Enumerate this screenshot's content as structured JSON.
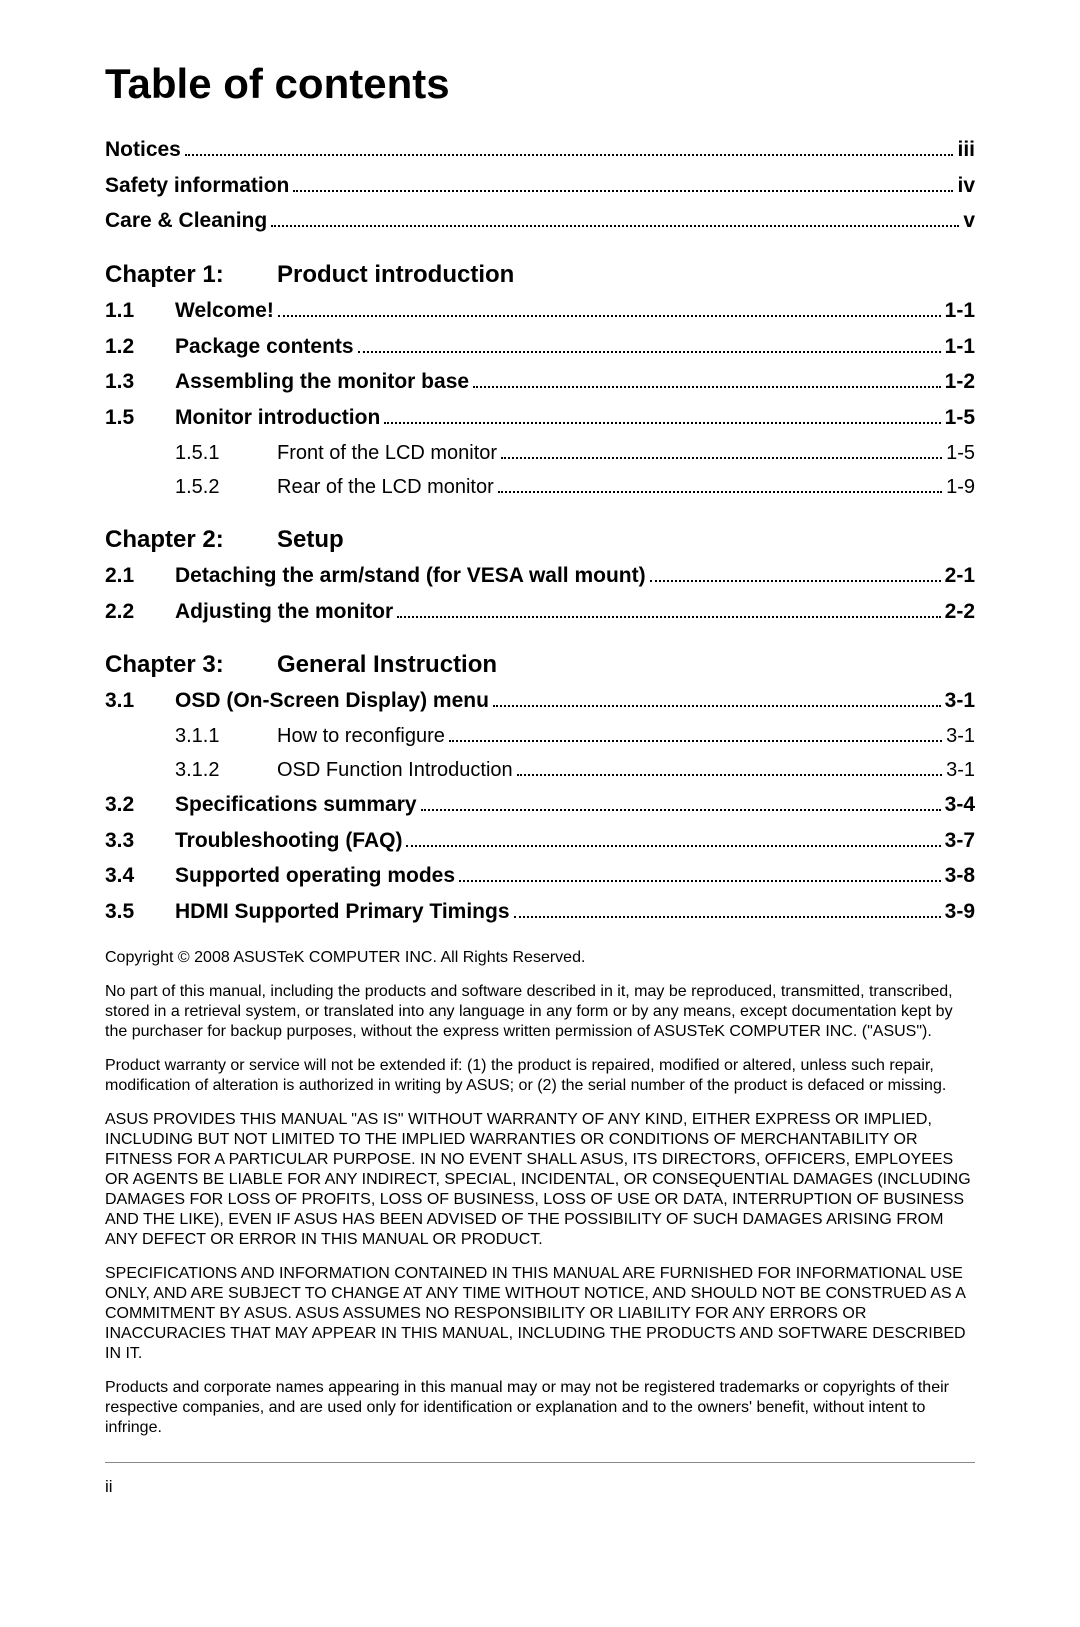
{
  "title": "Table of contents",
  "front_matter": [
    {
      "label": "Notices",
      "page": "iii"
    },
    {
      "label": "Safety information",
      "page": "iv"
    },
    {
      "label": "Care & Cleaning",
      "page": "v"
    }
  ],
  "chapters": [
    {
      "header_num": "Chapter 1:",
      "header_title": "Product introduction",
      "sections": [
        {
          "num": "1.1",
          "label": "Welcome!",
          "page": "1-1"
        },
        {
          "num": "1.2",
          "label": "Package contents",
          "page": "1-1"
        },
        {
          "num": "1.3",
          "label": "Assembling the monitor base",
          "page": "1-2"
        },
        {
          "num": "1.5",
          "label": "Monitor introduction",
          "page": "1-5",
          "subs": [
            {
              "num": "1.5.1",
              "label": "Front of the LCD monitor",
              "page": "1-5"
            },
            {
              "num": "1.5.2",
              "label": "Rear of the LCD monitor",
              "page": "1-9"
            }
          ]
        }
      ]
    },
    {
      "header_num": "Chapter 2:",
      "header_title": "Setup",
      "sections": [
        {
          "num": "2.1",
          "label": "Detaching the arm/stand (for VESA wall mount)",
          "page": "2-1"
        },
        {
          "num": "2.2",
          "label": "Adjusting the monitor",
          "page": "2-2"
        }
      ]
    },
    {
      "header_num": "Chapter 3:",
      "header_title": "General Instruction",
      "sections": [
        {
          "num": "3.1",
          "label": "OSD (On-Screen Display) menu",
          "page": "3-1",
          "subs": [
            {
              "num": "3.1.1",
              "label": "How to reconfigure",
              "page": "3-1"
            },
            {
              "num": "3.1.2",
              "label": "OSD Function Introduction",
              "page": "3-1"
            }
          ]
        },
        {
          "num": "3.2",
          "label": "Specifications summary",
          "page": "3-4"
        },
        {
          "num": "3.3",
          "label": "Troubleshooting (FAQ)",
          "page": "3-7"
        },
        {
          "num": "3.4",
          "label": "Supported operating modes",
          "page": "3-8"
        },
        {
          "num": "3.5",
          "label": "HDMI Supported Primary Timings",
          "page": "3-9"
        }
      ]
    }
  ],
  "legal": [
    "Copyright © 2008 ASUSTeK COMPUTER INC. All Rights Reserved.",
    "No part of this manual, including the products and software described in it, may be reproduced, transmitted, transcribed, stored in a retrieval system, or translated into any language in any form or by any means, except documentation kept by the purchaser for backup purposes, without the express written permission of ASUSTeK COMPUTER INC. (\"ASUS\").",
    "Product warranty or service will not be extended if: (1) the product is repaired, modified or altered, unless such repair, modification of alteration is authorized in writing by ASUS; or (2) the serial number of the product is defaced or missing.",
    "ASUS PROVIDES THIS MANUAL \"AS IS\" WITHOUT WARRANTY OF ANY KIND, EITHER EXPRESS OR IMPLIED, INCLUDING BUT NOT LIMITED TO THE IMPLIED WARRANTIES OR CONDITIONS OF MERCHANTABILITY OR FITNESS FOR A PARTICULAR PURPOSE. IN NO EVENT SHALL ASUS, ITS DIRECTORS, OFFICERS, EMPLOYEES OR AGENTS BE LIABLE FOR ANY INDIRECT, SPECIAL, INCIDENTAL, OR CONSEQUENTIAL DAMAGES (INCLUDING DAMAGES FOR LOSS OF PROFITS, LOSS OF BUSINESS, LOSS OF USE OR DATA, INTERRUPTION OF BUSINESS AND THE LIKE), EVEN IF ASUS HAS BEEN ADVISED OF THE POSSIBILITY OF SUCH DAMAGES ARISING FROM ANY DEFECT OR ERROR IN THIS MANUAL OR PRODUCT.",
    "SPECIFICATIONS AND INFORMATION CONTAINED IN THIS MANUAL ARE FURNISHED FOR INFORMATIONAL USE ONLY, AND ARE SUBJECT TO CHANGE AT ANY TIME WITHOUT NOTICE, AND SHOULD NOT BE CONSTRUED AS A COMMITMENT BY ASUS. ASUS ASSUMES NO RESPONSIBILITY OR LIABILITY FOR ANY ERRORS OR INACCURACIES THAT MAY APPEAR IN THIS MANUAL, INCLUDING THE PRODUCTS AND SOFTWARE DESCRIBED IN IT.",
    "Products and corporate names appearing in this manual may or may not be registered trademarks or copyrights of their respective companies, and are used only for identification or explanation and to the owners' benefit, without intent to infringe."
  ],
  "page_number": "ii"
}
